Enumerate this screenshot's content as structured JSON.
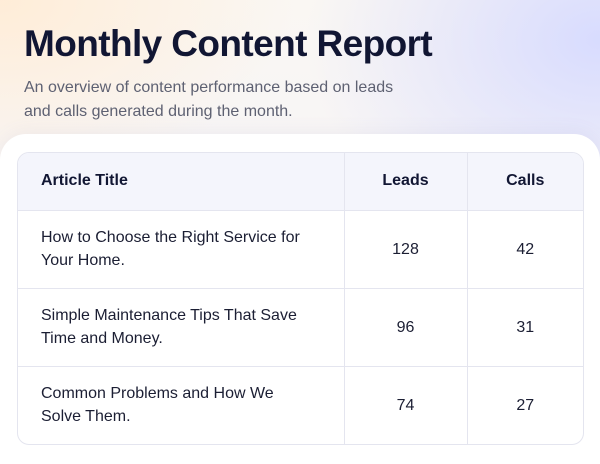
{
  "report": {
    "title": "Monthly Content Report",
    "subtitle": "An overview of content performance based on leads and calls generated during the month."
  },
  "table": {
    "headers": [
      "Article Title",
      "Leads",
      "Calls"
    ],
    "rows": [
      {
        "title": "How to Choose the Right Service for Your Home.",
        "leads": "128",
        "calls": "42"
      },
      {
        "title": "Simple Maintenance Tips That Save Time and Money.",
        "leads": "96",
        "calls": "31"
      },
      {
        "title": "Common Problems and How We Solve Them.",
        "leads": "74",
        "calls": "27"
      }
    ]
  },
  "colors": {
    "title": "#111633",
    "subtitle": "#5e6172",
    "header_row_bg": "#f4f5fc",
    "border": "#e4e5ef"
  }
}
